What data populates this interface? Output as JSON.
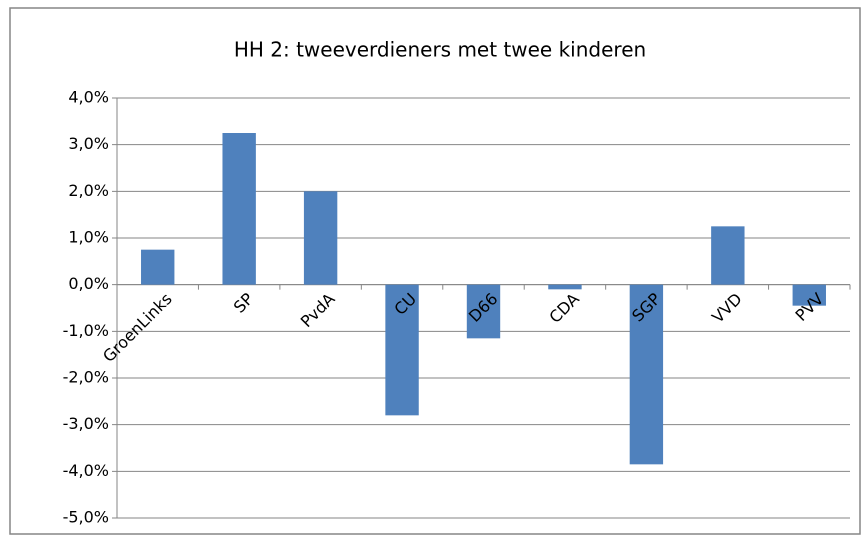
{
  "chart_data": {
    "type": "bar",
    "title": "HH 2:  tweeverdieners met twee kinderen",
    "categories": [
      "GroenLinks",
      "SP",
      "PvdA",
      "CU",
      "D66",
      "CDA",
      "SGP",
      "VVD",
      "PVV"
    ],
    "values": [
      0.75,
      3.25,
      2.0,
      -2.8,
      -1.15,
      -0.1,
      -3.85,
      1.25,
      -0.45
    ],
    "color": "#4f81bd",
    "ylim": [
      -5,
      4
    ],
    "yticks": [
      {
        "value": -5,
        "label": "-5,0%"
      },
      {
        "value": -4,
        "label": "-4,0%"
      },
      {
        "value": -3,
        "label": "-3,0%"
      },
      {
        "value": -2,
        "label": "-2,0%"
      },
      {
        "value": -1,
        "label": "-1,0%"
      },
      {
        "value": 0,
        "label": "0,0%"
      },
      {
        "value": 1,
        "label": "1,0%"
      },
      {
        "value": 2,
        "label": "2,0%"
      },
      {
        "value": 3,
        "label": "3,0%"
      },
      {
        "value": 4,
        "label": "4,0%"
      }
    ],
    "grid": true
  }
}
